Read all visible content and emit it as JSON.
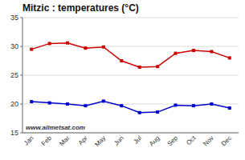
{
  "chart_data": {
    "type": "line",
    "title": "Mitzic : temperatures (°C)",
    "categories": [
      "Jan",
      "Feb",
      "Mar",
      "Apr",
      "May",
      "Jun",
      "Jul",
      "Aug",
      "Sep",
      "Oct",
      "Nov",
      "Dec"
    ],
    "series": [
      {
        "color": "#cc0000",
        "marker": "square",
        "values": [
          29.5,
          30.5,
          30.6,
          29.7,
          29.9,
          27.5,
          26.4,
          26.5,
          28.8,
          29.3,
          29.1,
          28.0
        ]
      },
      {
        "color": "#0000cc",
        "marker": "square",
        "values": [
          20.4,
          20.2,
          20.0,
          19.7,
          20.5,
          19.7,
          18.5,
          18.6,
          19.8,
          19.7,
          20.0,
          19.3
        ]
      }
    ],
    "ylim": [
      15,
      35
    ],
    "yticks": [
      15,
      20,
      25,
      30,
      35
    ],
    "grid": true,
    "annotations": [
      "www.allmetsat.com"
    ]
  }
}
